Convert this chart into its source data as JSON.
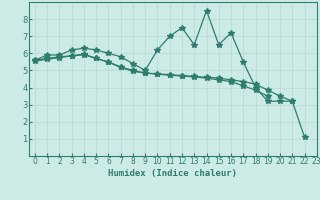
{
  "xlabel": "Humidex (Indice chaleur)",
  "xlim": [
    -0.5,
    23
  ],
  "ylim": [
    0,
    9
  ],
  "xticks": [
    0,
    1,
    2,
    3,
    4,
    5,
    6,
    7,
    8,
    9,
    10,
    11,
    12,
    13,
    14,
    15,
    16,
    17,
    18,
    19,
    20,
    21,
    22,
    23
  ],
  "yticks": [
    1,
    2,
    3,
    4,
    5,
    6,
    7,
    8
  ],
  "line_color": "#2e7d6e",
  "bg_color": "#cceae6",
  "grid_color": "#b8d8d4",
  "series": [
    [
      5.6,
      5.9,
      5.9,
      6.2,
      6.3,
      6.2,
      6.0,
      5.8,
      5.4,
      5.0,
      6.2,
      7.0,
      7.5,
      6.5,
      8.5,
      6.5,
      7.2,
      5.5,
      4.0,
      3.2,
      3.2,
      3.2,
      1.1
    ],
    [
      5.6,
      5.7,
      5.8,
      5.85,
      5.95,
      5.7,
      5.5,
      5.2,
      5.0,
      4.85,
      4.8,
      4.75,
      4.7,
      4.65,
      4.6,
      4.55,
      4.45,
      4.35,
      4.2,
      3.85,
      3.5,
      3.2,
      null
    ],
    [
      5.55,
      5.65,
      5.75,
      5.85,
      5.92,
      5.7,
      5.48,
      5.18,
      4.95,
      4.85,
      4.78,
      4.72,
      4.68,
      4.62,
      4.55,
      4.45,
      4.35,
      4.1,
      3.85,
      3.5,
      null,
      null,
      null
    ]
  ],
  "marker": "*",
  "markersize": 4,
  "linewidth": 0.9
}
